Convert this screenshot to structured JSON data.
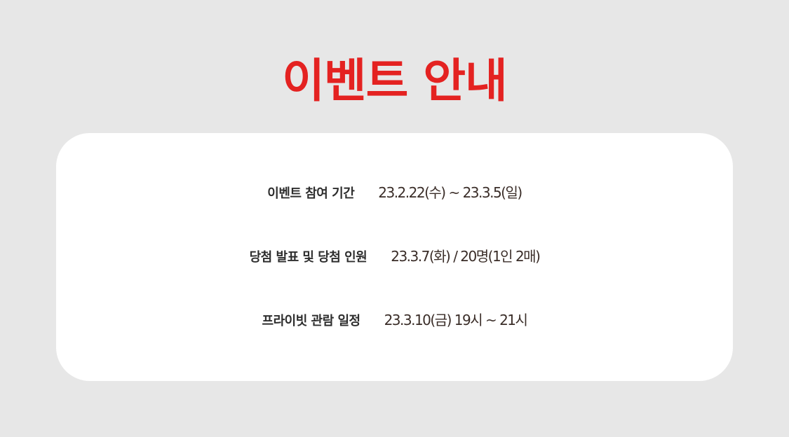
{
  "title": "이벤트 안내",
  "colors": {
    "background": "#e7e7e7",
    "title": "#e42221",
    "card": "#ffffff",
    "label": "#2e2e2e",
    "value": "#3a2d28"
  },
  "info": {
    "rows": [
      {
        "label": "이벤트 참여 기간",
        "value": "23.2.22(수) ~ 23.3.5(일)"
      },
      {
        "label": "당첨 발표 및 당첨 인원",
        "value": "23.3.7(화) / 20명(1인 2매)"
      },
      {
        "label": "프라이빗 관람 일정",
        "value": "23.3.10(금) 19시 ~ 21시"
      }
    ]
  }
}
